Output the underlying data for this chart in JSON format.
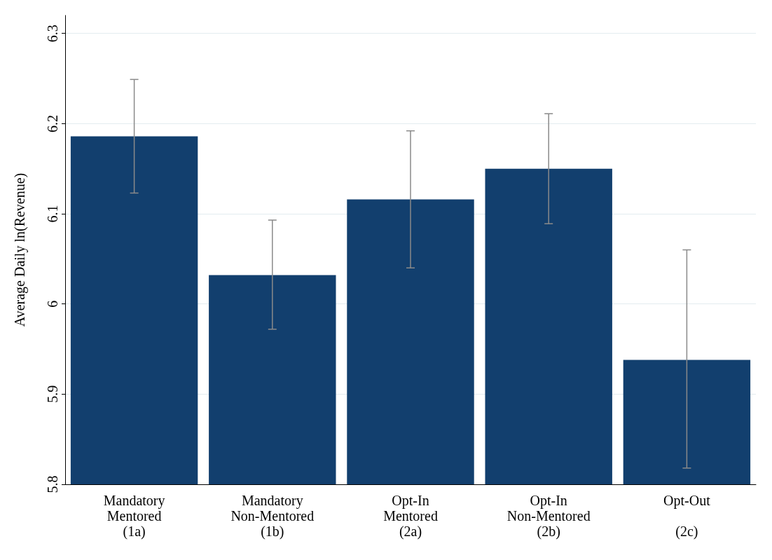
{
  "chart_data": {
    "type": "bar",
    "ylabel": "Average Daily ln(Revenue)",
    "categories": [
      "Mandatory\nMentored\n(1a)",
      "Mandatory\nNon-Mentored\n(1b)",
      "Opt-In\nMentored\n(2a)",
      "Opt-In\nNon-Mentored\n(2b)",
      "Opt-Out\n\n(2c)"
    ],
    "values": [
      6.186,
      6.032,
      6.116,
      6.15,
      5.938
    ],
    "errors": [
      [
        6.123,
        6.249
      ],
      [
        5.972,
        6.093
      ],
      [
        6.04,
        6.192
      ],
      [
        6.089,
        6.211
      ],
      [
        5.818,
        6.06
      ]
    ],
    "color": "#123f6e",
    "ylim": [
      5.8,
      6.32
    ],
    "yticks": [
      5.8,
      5.9,
      6,
      6.1,
      6.2,
      6.3
    ],
    "grid": "y"
  }
}
